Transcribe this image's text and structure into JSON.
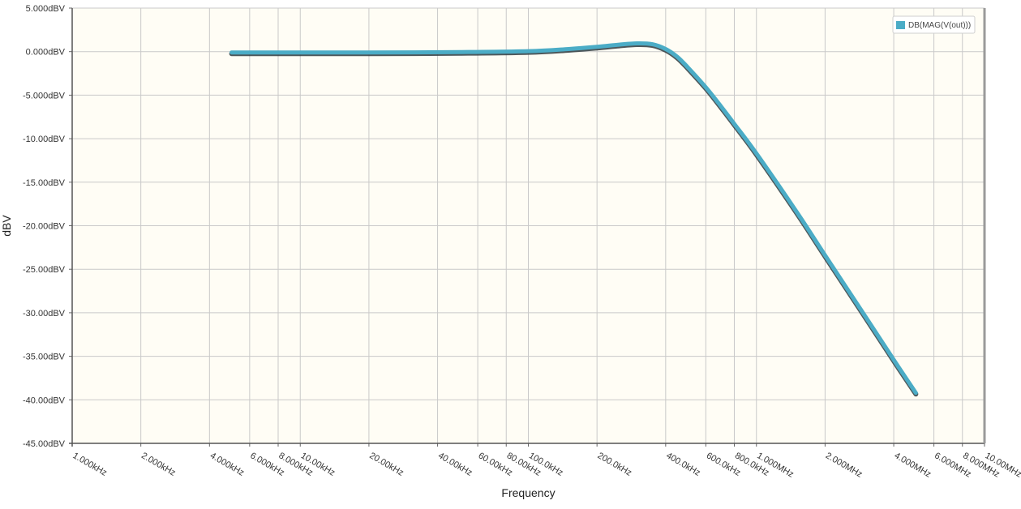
{
  "chart_data": {
    "type": "line",
    "xscale": "log",
    "xlabel": "Frequency",
    "ylabel": "dBV",
    "xlim": [
      1000,
      10000000
    ],
    "ylim": [
      -45,
      5
    ],
    "grid": true,
    "legend_position": "top-right",
    "plot_background": "#fffdf5",
    "grid_color": "#c9c9c9",
    "y_ticks": [
      {
        "value": 5,
        "label": "5.000dBV"
      },
      {
        "value": 0,
        "label": "0.000dBV"
      },
      {
        "value": -5,
        "label": "-5.000dBV"
      },
      {
        "value": -10,
        "label": "-10.00dBV"
      },
      {
        "value": -15,
        "label": "-15.00dBV"
      },
      {
        "value": -20,
        "label": "-20.00dBV"
      },
      {
        "value": -25,
        "label": "-25.00dBV"
      },
      {
        "value": -30,
        "label": "-30.00dBV"
      },
      {
        "value": -35,
        "label": "-35.00dBV"
      },
      {
        "value": -40,
        "label": "-40.00dBV"
      },
      {
        "value": -45,
        "label": "-45.00dBV"
      }
    ],
    "x_ticks": [
      {
        "value": 1000,
        "label": "1.000kHz"
      },
      {
        "value": 2000,
        "label": "2.000kHz"
      },
      {
        "value": 4000,
        "label": "4.000kHz"
      },
      {
        "value": 6000,
        "label": "6.000kHz"
      },
      {
        "value": 8000,
        "label": "8.000kHz"
      },
      {
        "value": 10000,
        "label": "10.00kHz"
      },
      {
        "value": 20000,
        "label": "20.00kHz"
      },
      {
        "value": 40000,
        "label": "40.00kHz"
      },
      {
        "value": 60000,
        "label": "60.00kHz"
      },
      {
        "value": 80000,
        "label": "80.00kHz"
      },
      {
        "value": 100000,
        "label": "100.0kHz"
      },
      {
        "value": 200000,
        "label": "200.0kHz"
      },
      {
        "value": 400000,
        "label": "400.0kHz"
      },
      {
        "value": 600000,
        "label": "600.0kHz"
      },
      {
        "value": 800000,
        "label": "800.0kHz"
      },
      {
        "value": 1000000,
        "label": "1.000MHz"
      },
      {
        "value": 2000000,
        "label": "2.000MHz"
      },
      {
        "value": 4000000,
        "label": "4.000MHz"
      },
      {
        "value": 6000000,
        "label": "6.000MHz"
      },
      {
        "value": 8000000,
        "label": "8.000MHz"
      },
      {
        "value": 10000000,
        "label": "10.00MHz"
      }
    ],
    "series": [
      {
        "name": "DB(MAG(V(out)))",
        "color": "#4bacc6",
        "x": [
          5000,
          10000,
          20000,
          50000,
          100000,
          150000,
          200000,
          250000,
          300000,
          350000,
          400000,
          450000,
          500000,
          600000,
          700000,
          800000,
          1000000,
          1500000,
          2000000,
          3000000,
          4000000,
          5000000
        ],
        "y": [
          -0.1,
          -0.1,
          -0.1,
          -0.05,
          0.05,
          0.3,
          0.55,
          0.8,
          0.95,
          0.85,
          0.3,
          -0.6,
          -1.8,
          -4.1,
          -6.3,
          -8.3,
          -11.7,
          -18.4,
          -23.4,
          -30.4,
          -35.4,
          -39.2
        ]
      }
    ]
  }
}
